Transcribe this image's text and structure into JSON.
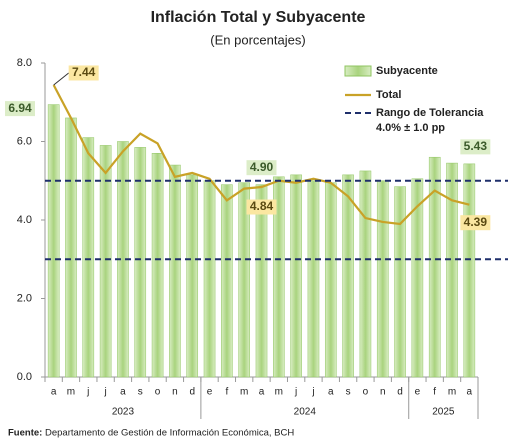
{
  "chart_data": {
    "type": "bar_line",
    "title": "Inflación Total y Subyacente",
    "subtitle": "(En porcentajes)",
    "categories": [
      "a",
      "m",
      "j",
      "j",
      "a",
      "s",
      "o",
      "n",
      "d",
      "e",
      "f",
      "m",
      "a",
      "m",
      "j",
      "j",
      "a",
      "s",
      "o",
      "n",
      "d",
      "e",
      "f",
      "m",
      "a"
    ],
    "years": [
      "2023",
      "2023",
      "2023",
      "2023",
      "2023",
      "2023",
      "2023",
      "2023",
      "2023",
      "2024",
      "2024",
      "2024",
      "2024",
      "2024",
      "2024",
      "2024",
      "2024",
      "2024",
      "2024",
      "2024",
      "2024",
      "2025",
      "2025",
      "2025",
      "2025"
    ],
    "series": [
      {
        "name": "Subyacente",
        "kind": "bar",
        "color": "#b3d98c",
        "values": [
          6.94,
          6.6,
          6.1,
          5.9,
          6.0,
          5.85,
          5.7,
          5.4,
          5.15,
          5.0,
          4.9,
          4.95,
          4.9,
          5.1,
          5.15,
          5.0,
          4.95,
          5.15,
          5.25,
          5.0,
          4.85,
          5.05,
          5.6,
          5.45,
          5.43
        ],
        "value_labels": [
          "6.94",
          null,
          null,
          null,
          null,
          null,
          null,
          null,
          null,
          null,
          null,
          null,
          "4.90",
          null,
          null,
          null,
          null,
          null,
          null,
          null,
          null,
          null,
          null,
          null,
          "5.43"
        ]
      },
      {
        "name": "Total",
        "kind": "line",
        "color": "#c9a227",
        "values": [
          7.44,
          6.6,
          5.7,
          5.2,
          5.75,
          6.2,
          5.95,
          5.1,
          5.2,
          5.05,
          4.5,
          4.8,
          4.84,
          5.0,
          4.95,
          5.05,
          4.95,
          4.6,
          4.05,
          3.95,
          3.9,
          4.35,
          4.75,
          4.5,
          4.39
        ],
        "value_labels": [
          "7.44",
          null,
          null,
          null,
          null,
          null,
          null,
          null,
          null,
          null,
          null,
          null,
          "4.84",
          null,
          null,
          null,
          null,
          null,
          null,
          null,
          null,
          null,
          null,
          null,
          "4.39"
        ]
      }
    ],
    "tolerance": {
      "name": "Rango de Tolerancia",
      "note": "4.0% ± 1.0 pp",
      "color": "#1f2f6b",
      "values": [
        5,
        3
      ]
    },
    "ylim": [
      0,
      8
    ],
    "yticks": [
      {
        "value": 0,
        "label": "0.0"
      },
      {
        "value": 2,
        "label": "2.0"
      },
      {
        "value": 4,
        "label": "4.0"
      },
      {
        "value": 6,
        "label": "6.0"
      },
      {
        "value": 8,
        "label": "8.0"
      }
    ],
    "source_label": "Fuente:",
    "source": "Departamento de Gestión de Información Económica, BCH"
  }
}
